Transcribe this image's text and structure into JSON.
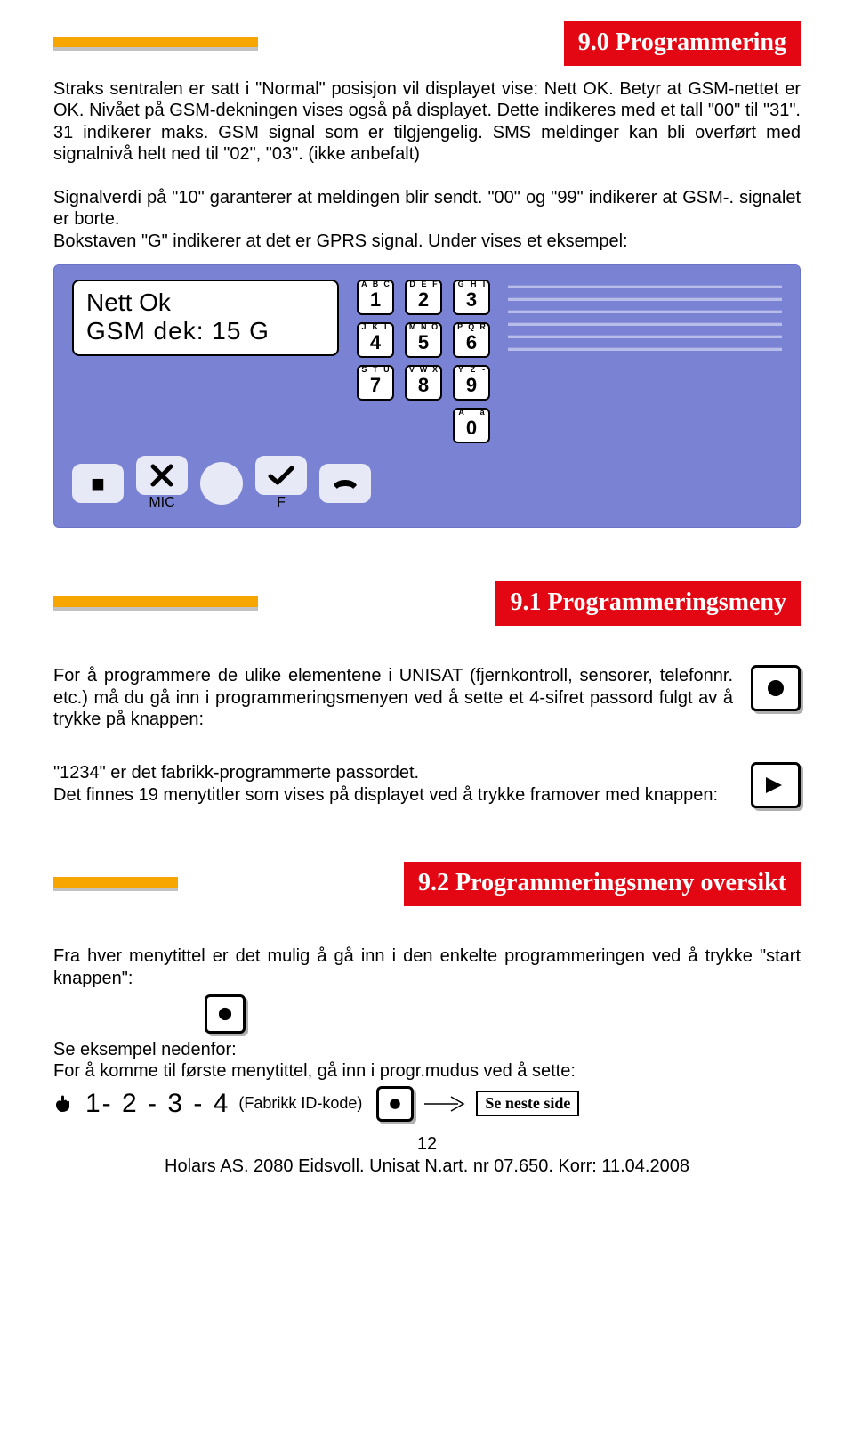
{
  "colors": {
    "section_bg": "#e30613",
    "section_text": "#ffffff",
    "orange_bar": "#f7a600",
    "device_bg": "#7a82d4",
    "soft_key_bg": "#e8e9f6"
  },
  "section_9_0": {
    "title": "9.0 Programmering",
    "body": "Straks sentralen er satt i \"Normal\" posisjon vil displayet vise: Nett OK. Betyr at GSM-nettet er OK. Nivået på GSM-dekningen vises også på displayet. Dette indikeres med et tall \"00\" til \"31\". 31 indikerer maks. GSM signal som er tilgjengelig. SMS meldinger kan bli overført med signalnivå helt ned til \"02\", \"03\". (ikke anbefalt)\n\nSignalverdi på \"10\" garanterer at meldingen blir sendt. \"00\" og \"99\" indikerer at GSM-. signalet er borte.\nBokstaven \"G\" indikerer at det er GPRS signal. Under vises et eksempel:"
  },
  "device": {
    "lcd_line1": "Nett Ok",
    "lcd_line2": "GSM dek:  15   G",
    "keys": [
      {
        "num": "1",
        "letters": [
          "A",
          "B",
          "C"
        ]
      },
      {
        "num": "2",
        "letters": [
          "D",
          "E",
          "F"
        ]
      },
      {
        "num": "3",
        "letters": [
          "G",
          "H",
          "I"
        ]
      },
      {
        "num": "4",
        "letters": [
          "J",
          "K",
          "L"
        ]
      },
      {
        "num": "5",
        "letters": [
          "M",
          "N",
          "O"
        ]
      },
      {
        "num": "6",
        "letters": [
          "P",
          "Q",
          "R"
        ]
      },
      {
        "num": "7",
        "letters": [
          "S",
          "T",
          "U"
        ]
      },
      {
        "num": "8",
        "letters": [
          "V",
          "W",
          "X"
        ]
      },
      {
        "num": "9",
        "letters": [
          "Y",
          "Z",
          "-"
        ]
      },
      {
        "num": "0",
        "letters": [
          "A",
          " ",
          "a"
        ]
      }
    ],
    "soft_keys": {
      "stop": "■",
      "mic_label": "MIC",
      "f_label": "F"
    }
  },
  "section_9_1": {
    "title": "9.1 Programmeringsmeny",
    "para1": "For å programmere de ulike elementene i UNISAT (fjernkontroll, sensorer, telefonnr. etc.) må du gå inn i programmeringsmenyen ved å sette et 4-sifret passord fulgt av å trykke på knappen:",
    "para2": "\"1234\" er det fabrikk-programmerte passordet.\nDet finnes 19 menytitler som vises på displayet ved å trykke framover med knappen:"
  },
  "section_9_2": {
    "title": "9.2 Programmeringsmeny oversikt",
    "para1": "Fra hver menytittel er det mulig å gå inn i den enkelte programmeringen ved å trykke \"start knappen\":",
    "para2": "Se eksempel nedenfor:",
    "para3": "For å komme til første menytittel, gå inn i progr.mudus ved å sette:",
    "code": "1- 2 - 3 - 4",
    "code_note": "(Fabrikk ID-kode)",
    "next_page": "Se neste side"
  },
  "footer": {
    "page": "12",
    "line": "Holars AS. 2080 Eidsvoll.  Unisat  N.art. nr 07.650.  Korr: 11.04.2008"
  }
}
